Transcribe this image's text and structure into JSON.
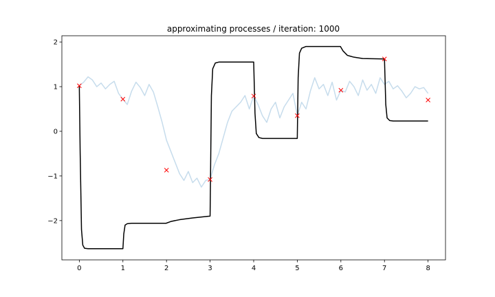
{
  "chart_data": {
    "type": "line",
    "title": "approximating processes / iteration: 1000",
    "xlabel": "",
    "ylabel": "",
    "xlim": [
      -0.4,
      8.4
    ],
    "ylim": [
      -2.88,
      2.14
    ],
    "x_ticks": [
      0,
      1,
      2,
      3,
      4,
      5,
      6,
      7,
      8
    ],
    "x_tick_labels": [
      "0",
      "1",
      "2",
      "3",
      "4",
      "5",
      "6",
      "7",
      "8"
    ],
    "y_ticks": [
      -2,
      -1,
      0,
      1,
      2
    ],
    "y_tick_labels": [
      "−2",
      "−1",
      "0",
      "1",
      "2"
    ],
    "grid": false,
    "colors": {
      "noisy": "#c6dcec",
      "approx": "#000000",
      "markers": "#ff0000"
    },
    "series": [
      {
        "kind": "noisy-line",
        "x": [
          0,
          0.1,
          0.2,
          0.3,
          0.4,
          0.5,
          0.6,
          0.7,
          0.8,
          0.9,
          1.0,
          1.1,
          1.2,
          1.3,
          1.4,
          1.5,
          1.6,
          1.7,
          1.8,
          1.9,
          2.0,
          2.1,
          2.2,
          2.3,
          2.4,
          2.5,
          2.6,
          2.7,
          2.8,
          2.9,
          3.0,
          3.1,
          3.2,
          3.3,
          3.4,
          3.5,
          3.6,
          3.7,
          3.8,
          3.9,
          4.0,
          4.1,
          4.2,
          4.3,
          4.4,
          4.5,
          4.6,
          4.7,
          4.8,
          4.9,
          5.0,
          5.1,
          5.2,
          5.3,
          5.4,
          5.5,
          5.6,
          5.7,
          5.8,
          5.9,
          6.0,
          6.1,
          6.2,
          6.3,
          6.4,
          6.5,
          6.6,
          6.7,
          6.8,
          6.9,
          7.0,
          7.1,
          7.2,
          7.3,
          7.4,
          7.5,
          7.6,
          7.7,
          7.8,
          7.9,
          8.0
        ],
        "y": [
          1.02,
          1.1,
          1.22,
          1.15,
          1.0,
          1.08,
          0.95,
          1.05,
          1.12,
          0.85,
          0.72,
          0.6,
          0.9,
          1.1,
          0.98,
          0.8,
          1.05,
          0.88,
          0.55,
          0.2,
          -0.2,
          -0.45,
          -0.7,
          -0.95,
          -1.1,
          -0.9,
          -1.15,
          -1.05,
          -1.25,
          -1.1,
          -1.08,
          -0.75,
          -0.5,
          -0.15,
          0.2,
          0.45,
          0.55,
          0.65,
          0.8,
          0.5,
          0.8,
          0.6,
          0.35,
          0.2,
          0.5,
          0.65,
          0.3,
          0.55,
          0.7,
          0.85,
          0.35,
          0.65,
          0.5,
          0.9,
          1.2,
          0.95,
          1.05,
          0.8,
          1.1,
          0.7,
          0.92,
          0.88,
          1.12,
          1.0,
          0.8,
          1.15,
          0.92,
          1.05,
          0.85,
          1.2,
          1.05,
          1.12,
          0.95,
          1.02,
          0.9,
          0.75,
          0.85,
          1.0,
          0.95,
          0.98,
          0.85
        ]
      },
      {
        "kind": "approx-line",
        "x": [
          0,
          0.02,
          0.05,
          0.08,
          0.12,
          0.2,
          0.5,
          0.99,
          1.0,
          1.02,
          1.05,
          1.1,
          1.2,
          1.5,
          1.99,
          2.1,
          2.3,
          2.6,
          2.99,
          3.0,
          3.03,
          3.06,
          3.12,
          3.2,
          3.5,
          3.99,
          4.0,
          4.03,
          4.06,
          4.12,
          4.2,
          4.5,
          4.99,
          5.0,
          5.02,
          5.05,
          5.1,
          5.2,
          5.5,
          5.99,
          6.05,
          6.15,
          6.3,
          6.5,
          6.99,
          7.0,
          7.03,
          7.06,
          7.12,
          7.2,
          7.5,
          8.0
        ],
        "y": [
          1.02,
          -0.5,
          -2.2,
          -2.55,
          -2.62,
          -2.63,
          -2.63,
          -2.63,
          -2.63,
          -2.3,
          -2.1,
          -2.07,
          -2.06,
          -2.06,
          -2.06,
          -2.02,
          -1.98,
          -1.94,
          -1.9,
          -1.9,
          0.8,
          1.4,
          1.53,
          1.55,
          1.55,
          1.55,
          1.55,
          0.4,
          -0.05,
          -0.14,
          -0.16,
          -0.16,
          -0.16,
          -0.16,
          1.2,
          1.75,
          1.86,
          1.9,
          1.9,
          1.9,
          1.8,
          1.7,
          1.66,
          1.63,
          1.62,
          1.62,
          0.6,
          0.3,
          0.24,
          0.23,
          0.23,
          0.23
        ]
      },
      {
        "kind": "markers",
        "marker": "x",
        "x": [
          0,
          1,
          2,
          3,
          4,
          5,
          6,
          7,
          8
        ],
        "y": [
          1.02,
          0.72,
          -0.87,
          -1.08,
          0.79,
          0.35,
          0.92,
          1.62,
          0.7
        ]
      }
    ]
  }
}
